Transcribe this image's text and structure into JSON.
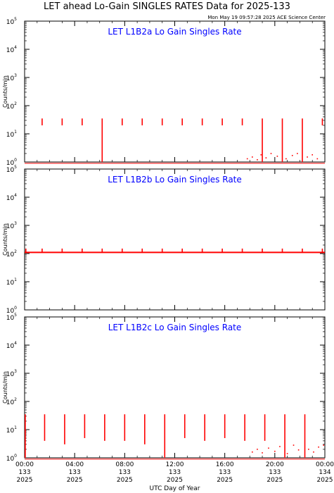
{
  "title": "LET ahead Lo-Gain SINGLES RATES Data for 2025-133",
  "timestamp": "Mon May 19 09:57:28 2025 ACE Science Center",
  "colors": {
    "series": "#ff0000",
    "panel_title": "#0000ff",
    "axis": "#000000"
  },
  "chart_data": [
    {
      "type": "line",
      "title": "LET L1B2a Lo Gain Singles Rate",
      "ylabel": "Counts/min",
      "yscale": "log",
      "ylim": [
        1,
        100000
      ],
      "xlim": [
        0,
        24
      ],
      "yticks": [
        {
          "base": "10",
          "exp": "0"
        },
        {
          "base": "10",
          "exp": "1"
        },
        {
          "base": "10",
          "exp": "2"
        },
        {
          "base": "10",
          "exp": "3"
        },
        {
          "base": "10",
          "exp": "4"
        },
        {
          "base": "10",
          "exp": "5"
        }
      ],
      "baseline": 0.9,
      "spikes": [
        {
          "x": 1.4,
          "low": 20,
          "high": 35
        },
        {
          "x": 3.0,
          "low": 20,
          "high": 35
        },
        {
          "x": 4.6,
          "low": 20,
          "high": 35
        },
        {
          "x": 6.2,
          "low": 1,
          "high": 35
        },
        {
          "x": 7.8,
          "low": 20,
          "high": 35
        },
        {
          "x": 9.4,
          "low": 20,
          "high": 35
        },
        {
          "x": 11.0,
          "low": 20,
          "high": 35
        },
        {
          "x": 12.6,
          "low": 20,
          "high": 35
        },
        {
          "x": 14.2,
          "low": 20,
          "high": 35
        },
        {
          "x": 15.8,
          "low": 20,
          "high": 35
        },
        {
          "x": 17.4,
          "low": 20,
          "high": 35
        },
        {
          "x": 19.0,
          "low": 1,
          "high": 35
        },
        {
          "x": 20.6,
          "low": 1,
          "high": 35
        },
        {
          "x": 22.2,
          "low": 1,
          "high": 35
        },
        {
          "x": 23.8,
          "low": 20,
          "high": 35
        }
      ],
      "scatter": [
        [
          17.8,
          1.3
        ],
        [
          18.2,
          1.5
        ],
        [
          18.6,
          1.2
        ],
        [
          18.9,
          1.8
        ],
        [
          19.3,
          1.4
        ],
        [
          19.7,
          2.0
        ],
        [
          20.2,
          1.6
        ],
        [
          20.9,
          1.3
        ],
        [
          21.4,
          1.7
        ],
        [
          21.8,
          2.0
        ],
        [
          22.6,
          1.5
        ],
        [
          23.0,
          1.8
        ],
        [
          23.4,
          1.3
        ]
      ]
    },
    {
      "type": "line",
      "title": "LET L1B2b Lo Gain Singles Rate",
      "ylabel": "Counts/min",
      "yscale": "log",
      "ylim": [
        1,
        100000
      ],
      "xlim": [
        0,
        24
      ],
      "yticks": [
        {
          "base": "10",
          "exp": "0"
        },
        {
          "base": "10",
          "exp": "1"
        },
        {
          "base": "10",
          "exp": "2"
        },
        {
          "base": "10",
          "exp": "3"
        },
        {
          "base": "10",
          "exp": "4"
        },
        {
          "base": "10",
          "exp": "5"
        }
      ],
      "baseline": 110,
      "spikes": [
        {
          "x": 0.1,
          "low": 110,
          "high": 150
        },
        {
          "x": 1.4,
          "low": 110,
          "high": 150
        },
        {
          "x": 3.0,
          "low": 110,
          "high": 150
        },
        {
          "x": 4.6,
          "low": 110,
          "high": 150
        },
        {
          "x": 6.2,
          "low": 110,
          "high": 150
        },
        {
          "x": 7.8,
          "low": 110,
          "high": 150
        },
        {
          "x": 9.4,
          "low": 110,
          "high": 150
        },
        {
          "x": 11.0,
          "low": 110,
          "high": 150
        },
        {
          "x": 12.6,
          "low": 110,
          "high": 150
        },
        {
          "x": 14.2,
          "low": 110,
          "high": 150
        },
        {
          "x": 15.8,
          "low": 110,
          "high": 150
        },
        {
          "x": 17.4,
          "low": 110,
          "high": 150
        },
        {
          "x": 19.0,
          "low": 110,
          "high": 150
        },
        {
          "x": 20.6,
          "low": 110,
          "high": 150
        },
        {
          "x": 22.2,
          "low": 110,
          "high": 150
        },
        {
          "x": 23.8,
          "low": 110,
          "high": 150
        }
      ],
      "scatter": []
    },
    {
      "type": "line",
      "title": "LET L1B2c Lo Gain Singles Rate",
      "ylabel": "Counts/min",
      "yscale": "log",
      "ylim": [
        1,
        100000
      ],
      "xlim": [
        0,
        24
      ],
      "yticks": [
        {
          "base": "10",
          "exp": "0"
        },
        {
          "base": "10",
          "exp": "1"
        },
        {
          "base": "10",
          "exp": "2"
        },
        {
          "base": "10",
          "exp": "3"
        },
        {
          "base": "10",
          "exp": "4"
        },
        {
          "base": "10",
          "exp": "5"
        }
      ],
      "baseline": 0.9,
      "spikes": [
        {
          "x": 0.05,
          "low": 1,
          "high": 35
        },
        {
          "x": 1.6,
          "low": 4,
          "high": 35
        },
        {
          "x": 3.2,
          "low": 3,
          "high": 35
        },
        {
          "x": 4.8,
          "low": 5,
          "high": 35
        },
        {
          "x": 6.4,
          "low": 4,
          "high": 35
        },
        {
          "x": 8.0,
          "low": 4,
          "high": 35
        },
        {
          "x": 9.6,
          "low": 3,
          "high": 35
        },
        {
          "x": 11.2,
          "low": 1,
          "high": 35
        },
        {
          "x": 12.8,
          "low": 5,
          "high": 35
        },
        {
          "x": 14.4,
          "low": 4,
          "high": 35
        },
        {
          "x": 16.0,
          "low": 5,
          "high": 35
        },
        {
          "x": 17.6,
          "low": 4,
          "high": 35
        },
        {
          "x": 19.2,
          "low": 4,
          "high": 35
        },
        {
          "x": 20.8,
          "low": 1,
          "high": 35
        },
        {
          "x": 22.4,
          "low": 1,
          "high": 35
        }
      ],
      "scatter": [
        [
          18.2,
          1.6
        ],
        [
          18.6,
          2.0
        ],
        [
          19.0,
          1.5
        ],
        [
          19.5,
          2.2
        ],
        [
          20.0,
          1.7
        ],
        [
          20.4,
          2.5
        ],
        [
          21.0,
          1.4
        ],
        [
          21.5,
          2.8
        ],
        [
          21.9,
          1.9
        ],
        [
          22.7,
          2.0
        ],
        [
          23.1,
          1.6
        ],
        [
          23.5,
          2.4
        ],
        [
          23.9,
          2.8
        ]
      ]
    }
  ],
  "x_axis": {
    "label": "UTC Day of Year",
    "ticks": [
      {
        "x": 0,
        "time": "00:00",
        "doy": "133",
        "year": "2025"
      },
      {
        "x": 4,
        "time": "04:00",
        "doy": "133",
        "year": "2025"
      },
      {
        "x": 8,
        "time": "08:00",
        "doy": "133",
        "year": "2025"
      },
      {
        "x": 12,
        "time": "12:00",
        "doy": "133",
        "year": "2025"
      },
      {
        "x": 16,
        "time": "16:00",
        "doy": "133",
        "year": "2025"
      },
      {
        "x": 20,
        "time": "20:00",
        "doy": "133",
        "year": "2025"
      },
      {
        "x": 24,
        "time": "00:00",
        "doy": "134",
        "year": "2025"
      }
    ]
  }
}
